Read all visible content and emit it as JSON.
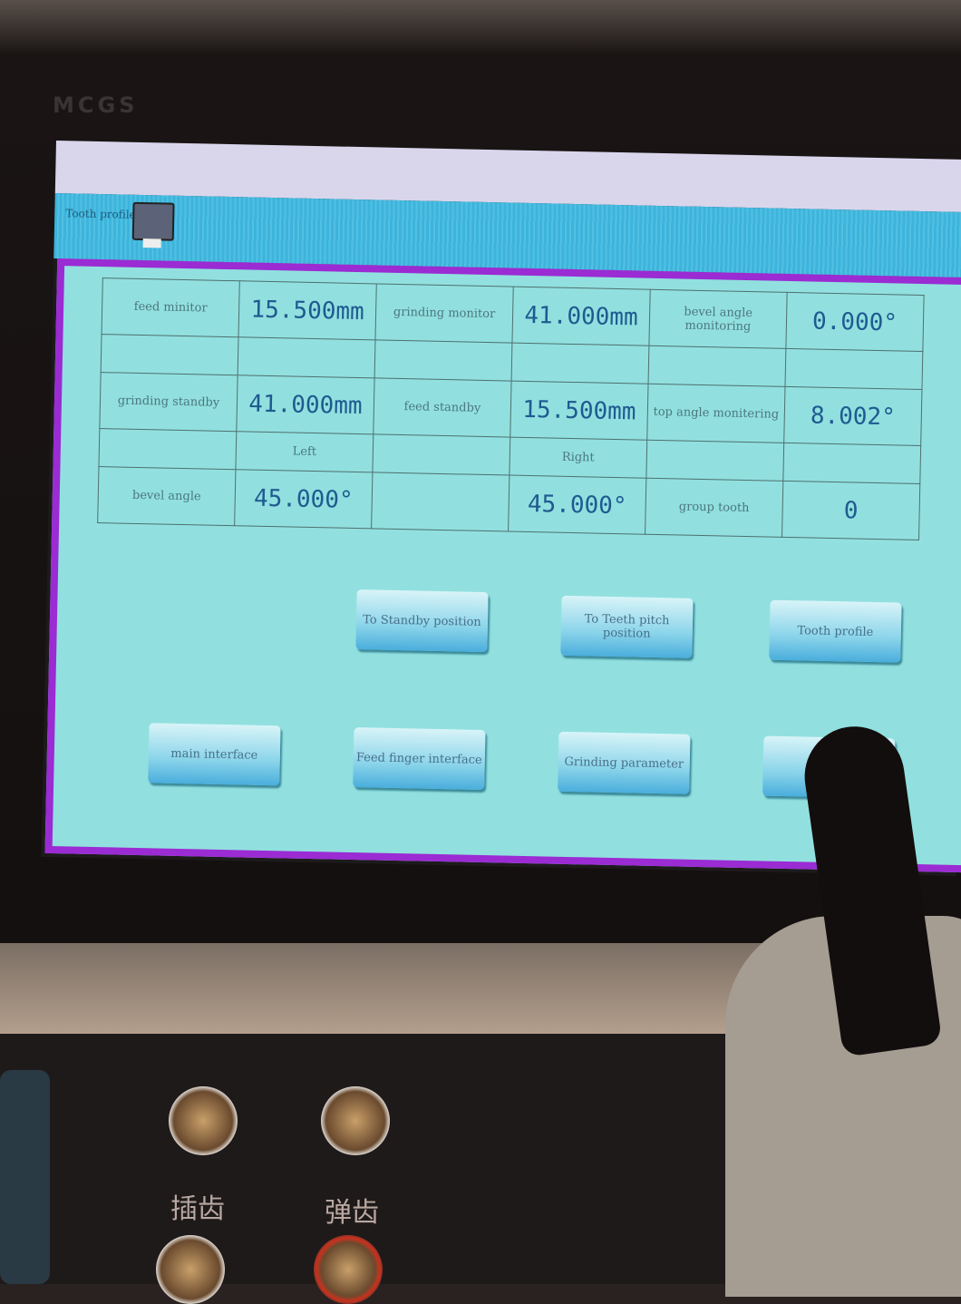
{
  "brand": "MCGS",
  "header": {
    "label": "Tooth profile"
  },
  "table": {
    "rows": [
      [
        "feed minitor",
        "15.500mm",
        "grinding monitor",
        "41.000mm",
        "bevel angle monitoring",
        "0.000°"
      ],
      [
        "",
        "",
        "",
        "",
        "",
        ""
      ],
      [
        "grinding standby",
        "41.000mm",
        "feed standby",
        "15.500mm",
        "top angle monitering",
        "8.002°"
      ],
      [
        "",
        "Left",
        "",
        "Right",
        "",
        ""
      ],
      [
        "bevel angle",
        "45.000°",
        "",
        "45.000°",
        "group tooth",
        "0"
      ]
    ]
  },
  "buttons": {
    "to_standby": "To Standby position",
    "to_pitch": "To Teeth pitch position",
    "tooth_profile": "Tooth profile",
    "main_interface": "main interface",
    "feed_finger": "Feed finger interface",
    "grinding_param": "Grinding parameter"
  },
  "console": {
    "label1": "插齿",
    "label2": "弹齿"
  },
  "colors": {
    "screen": "#91e0df",
    "border": "#9b2bd3",
    "value": "#1f5a90"
  }
}
